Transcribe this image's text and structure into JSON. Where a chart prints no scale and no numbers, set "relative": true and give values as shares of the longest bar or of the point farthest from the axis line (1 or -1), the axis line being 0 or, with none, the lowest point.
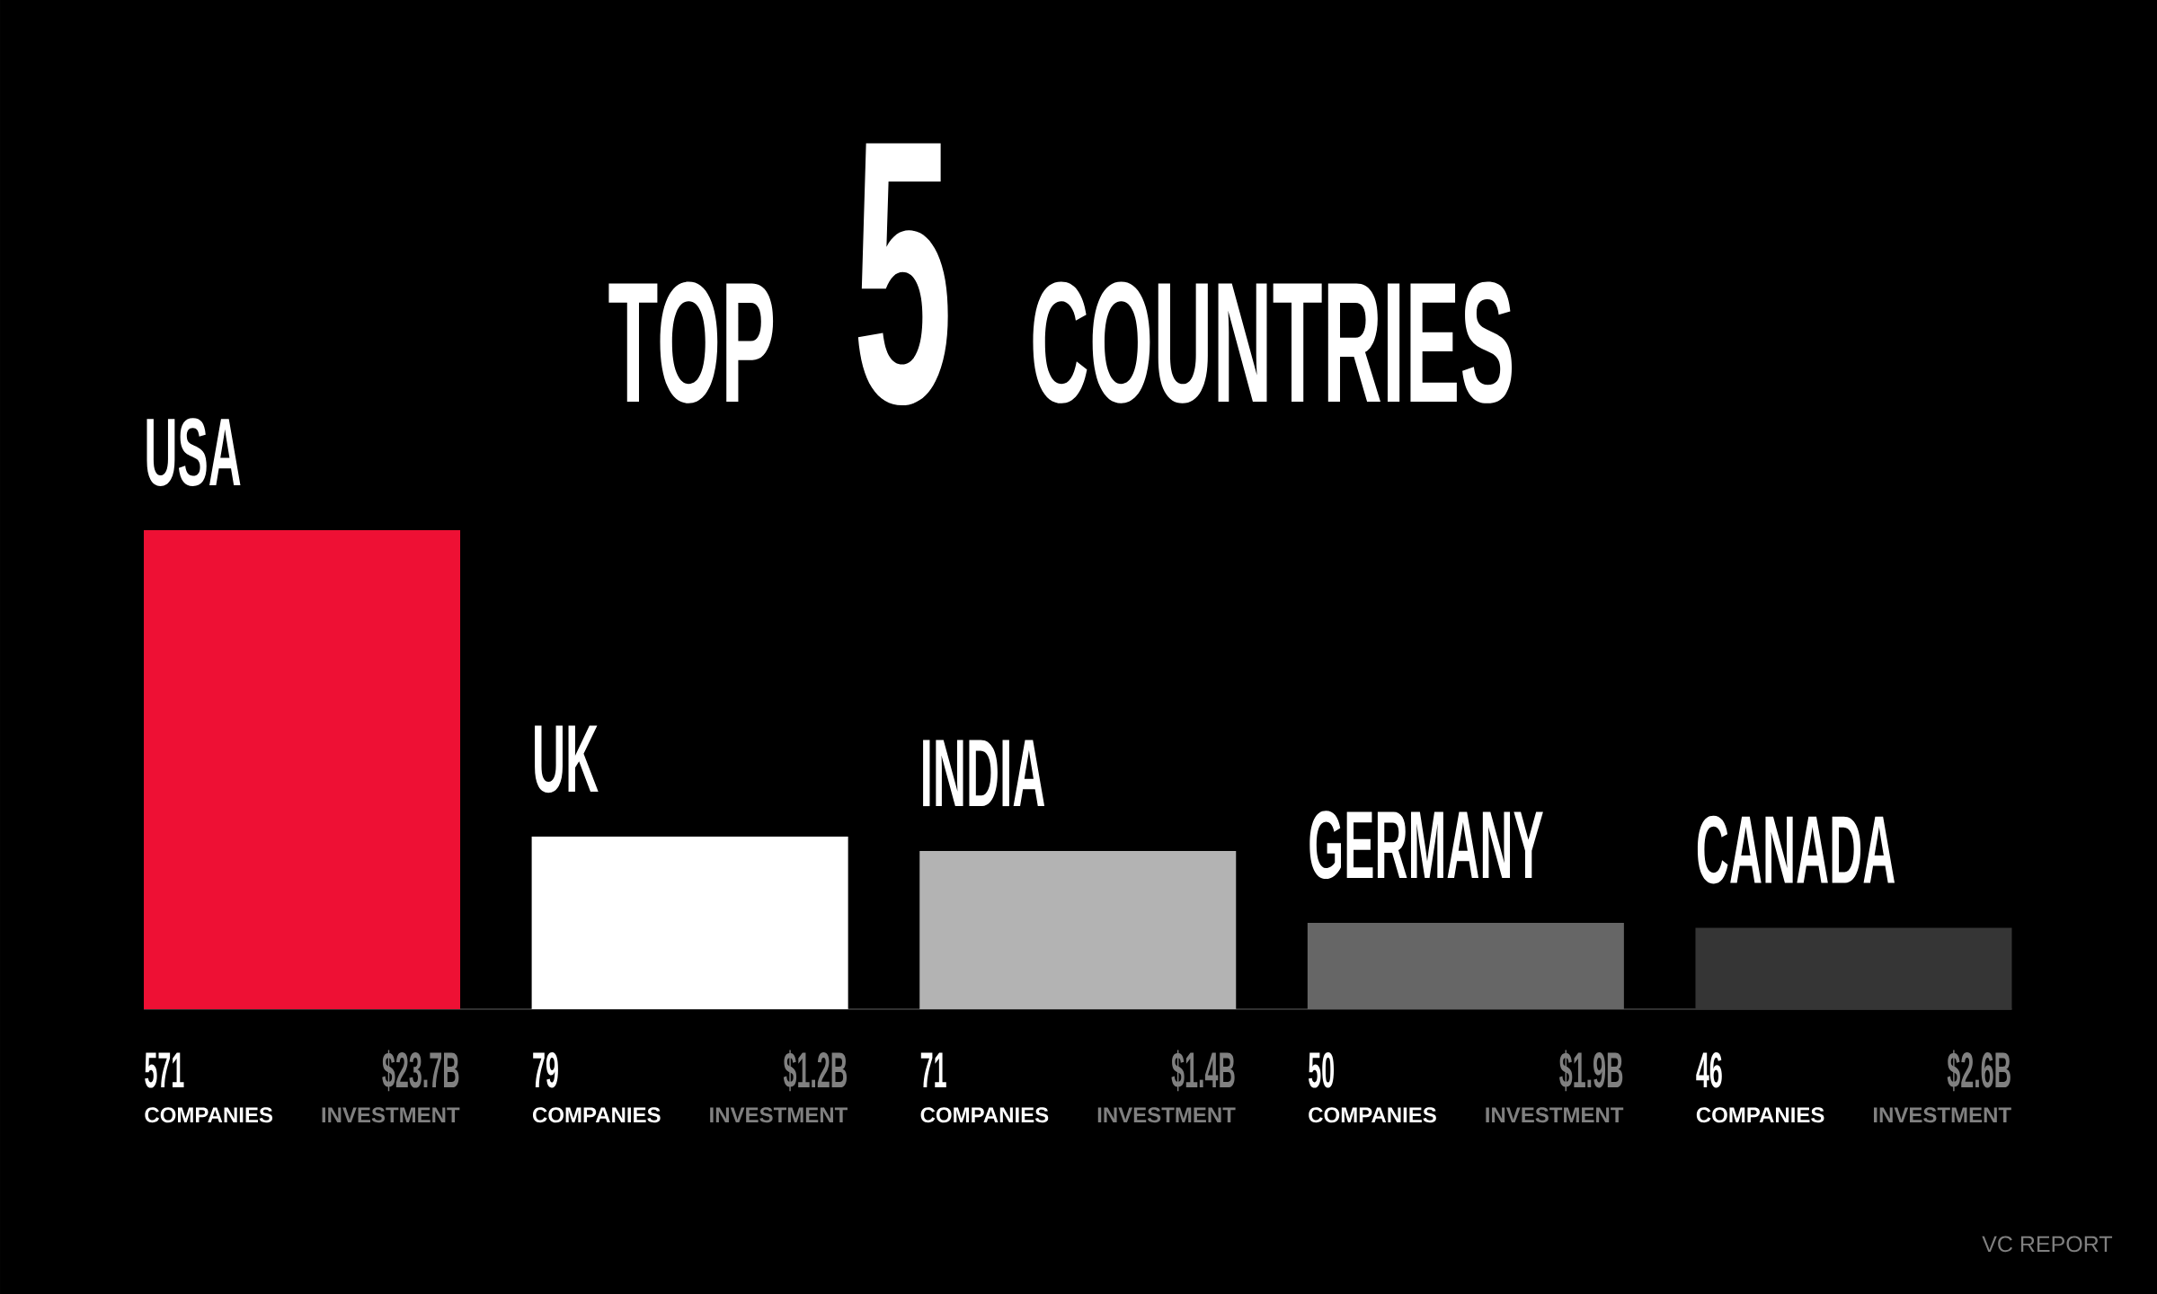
{
  "chart_data": {
    "type": "bar",
    "title": "TOP **5** COUNTRIES",
    "categories": [
      "USA",
      "UK",
      "INDIA",
      "GERMANY",
      "CANADA"
    ],
    "values": [
      1,
      0.36,
      0.33,
      0.18,
      0.17
    ],
    "colors": [
      "#ee1034",
      "#ffffff",
      "#b3b3b3",
      "#666666",
      "#353535"
    ],
    "relative": true,
    "tick_labels": "x",
    "annotations": [
      "571",
      "COMPANIES",
      "$23.7B",
      "INVESTMENT",
      "79",
      "COMPANIES",
      "$1.2B",
      "INVESTMENT",
      "71",
      "COMPANIES",
      "$1.4B",
      "INVESTMENT",
      "50",
      "COMPANIES",
      "$1.9B",
      "INVESTMENT",
      "46",
      "COMPANIES",
      "$2.6B",
      "INVESTMENT",
      "VC REPORT"
    ]
  }
}
